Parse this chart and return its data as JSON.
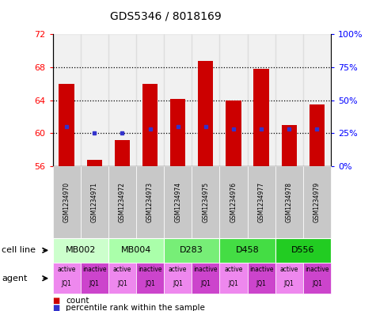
{
  "title": "GDS5346 / 8018169",
  "samples": [
    "GSM1234970",
    "GSM1234971",
    "GSM1234972",
    "GSM1234973",
    "GSM1234974",
    "GSM1234975",
    "GSM1234976",
    "GSM1234977",
    "GSM1234978",
    "GSM1234979"
  ],
  "count_values": [
    66.0,
    56.8,
    59.2,
    66.0,
    64.2,
    68.8,
    64.0,
    67.8,
    61.0,
    63.5
  ],
  "percentile_values": [
    30,
    25,
    25,
    28,
    30,
    30,
    28,
    28,
    28,
    28
  ],
  "ylim_left": [
    56,
    72
  ],
  "ylim_right": [
    0,
    100
  ],
  "yticks_left": [
    56,
    60,
    64,
    68,
    72
  ],
  "yticks_right": [
    0,
    25,
    50,
    75,
    100
  ],
  "ytick_right_labels": [
    "0%",
    "25%",
    "50%",
    "75%",
    "100%"
  ],
  "bar_bottom": 56,
  "bar_color": "#cc0000",
  "dot_color": "#3333cc",
  "cell_lines": [
    {
      "label": "MB002",
      "span": [
        0,
        2
      ],
      "color": "#ccffcc"
    },
    {
      "label": "MB004",
      "span": [
        2,
        4
      ],
      "color": "#aaffaa"
    },
    {
      "label": "D283",
      "span": [
        4,
        6
      ],
      "color": "#77ee77"
    },
    {
      "label": "D458",
      "span": [
        6,
        8
      ],
      "color": "#44dd44"
    },
    {
      "label": "D556",
      "span": [
        8,
        10
      ],
      "color": "#22cc22"
    }
  ],
  "agents": [
    {
      "label": "active",
      "sub": "JQ1",
      "color": "#ee88ee"
    },
    {
      "label": "inactive",
      "sub": "JQ1",
      "color": "#cc44cc"
    },
    {
      "label": "active",
      "sub": "JQ1",
      "color": "#ee88ee"
    },
    {
      "label": "inactive",
      "sub": "JQ1",
      "color": "#cc44cc"
    },
    {
      "label": "active",
      "sub": "JQ1",
      "color": "#ee88ee"
    },
    {
      "label": "inactive",
      "sub": "JQ1",
      "color": "#cc44cc"
    },
    {
      "label": "active",
      "sub": "JQ1",
      "color": "#ee88ee"
    },
    {
      "label": "inactive",
      "sub": "JQ1",
      "color": "#cc44cc"
    },
    {
      "label": "active",
      "sub": "JQ1",
      "color": "#ee88ee"
    },
    {
      "label": "inactive",
      "sub": "JQ1",
      "color": "#cc44cc"
    }
  ],
  "sample_bg_color": "#c8c8c8",
  "dotted_yticks": [
    60,
    64,
    68
  ],
  "legend_count_color": "#cc0000",
  "legend_pct_color": "#3333cc"
}
